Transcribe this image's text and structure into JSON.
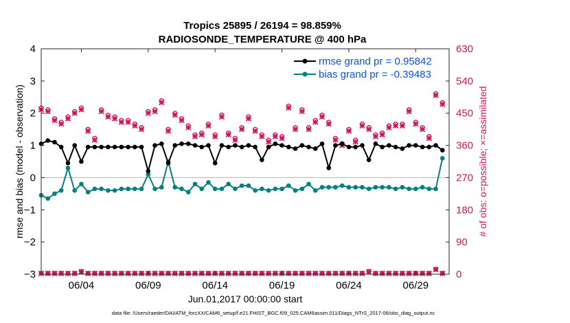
{
  "chart_data": {
    "type": "line",
    "title": "Tropics 25895 / 26194 = 98.859%",
    "subtitle": "RADIOSONDE_TEMPERATURE @ 400 hPa",
    "xlabel": "Jun.01,2017 00:00:00 start",
    "ylabel_left": "rmse and bias (model - observation)",
    "ylabel_right": "# of obs: o=possible; ×=assimilated",
    "footer": "data file: /Users/raeder/DAI/ATM_forcXX/CAM6_setup/f.e21.FHIST_BGC.f09_025.CAM6assim.011/Diags_NTrS_2017-06/obs_diag_output.nc",
    "xlim": [
      1,
      31.5
    ],
    "ylim_left": [
      -3,
      4
    ],
    "ylim_right": [
      0,
      630
    ],
    "x_ticks": [
      4,
      9,
      14,
      19,
      24,
      29
    ],
    "x_tick_labels": [
      "06/04",
      "06/09",
      "06/14",
      "06/19",
      "06/24",
      "06/29"
    ],
    "y_ticks_left": [
      -3,
      -2,
      -1,
      0,
      1,
      2,
      3,
      4
    ],
    "y_tick_labels_left": [
      "−3",
      "−2",
      "−1",
      "0",
      "1",
      "2",
      "3",
      "4"
    ],
    "y_ticks_right": [
      0,
      90,
      180,
      270,
      360,
      450,
      540,
      630
    ],
    "y_tick_labels_right": [
      "0",
      "90",
      "180",
      "270",
      "360",
      "450",
      "540",
      "630"
    ],
    "legend": [
      {
        "label": "rmse grand pr = 0.95842",
        "color": "#000000",
        "text_color": "#0a50e6"
      },
      {
        "label": "bias grand pr = -0.39483",
        "color": "#008080",
        "text_color": "#0a50e6"
      }
    ],
    "colors": {
      "rmse": "#000000",
      "bias": "#008080",
      "obs": "#d4145a",
      "zero_line": "#bbbbbb"
    },
    "x": [
      1.0,
      1.5,
      2.0,
      2.5,
      3.0,
      3.5,
      4.0,
      4.5,
      5.0,
      5.5,
      6.0,
      6.5,
      7.0,
      7.5,
      8.0,
      8.5,
      9.0,
      9.5,
      10.0,
      10.5,
      11.0,
      11.5,
      12.0,
      12.5,
      13.0,
      13.5,
      14.0,
      14.5,
      15.0,
      15.5,
      16.0,
      16.5,
      17.0,
      17.5,
      18.0,
      18.5,
      19.0,
      19.5,
      20.0,
      20.5,
      21.0,
      21.5,
      22.0,
      22.5,
      23.0,
      23.5,
      24.0,
      24.5,
      25.0,
      25.5,
      26.0,
      26.5,
      27.0,
      27.5,
      28.0,
      28.5,
      29.0,
      29.5,
      30.0,
      30.5,
      31.0
    ],
    "series": [
      {
        "name": "rmse",
        "values": [
          1.05,
          1.15,
          1.1,
          0.95,
          0.45,
          1.0,
          0.5,
          0.95,
          0.95,
          0.95,
          0.95,
          0.95,
          0.95,
          0.95,
          0.95,
          0.95,
          0.2,
          1.0,
          1.05,
          0.45,
          1.0,
          1.05,
          1.05,
          1.0,
          0.95,
          1.0,
          0.45,
          1.0,
          0.95,
          1.0,
          0.95,
          1.0,
          0.95,
          0.55,
          0.95,
          1.05,
          1.0,
          0.95,
          0.9,
          1.0,
          0.95,
          0.9,
          1.05,
          0.3,
          1.0,
          1.05,
          0.95,
          0.95,
          1.0,
          0.55,
          1.05,
          0.95,
          1.0,
          0.95,
          0.9,
          1.0,
          1.0,
          0.95,
          0.95,
          1.0,
          0.85
        ]
      },
      {
        "name": "bias",
        "values": [
          -0.55,
          -0.65,
          -0.5,
          -0.4,
          0.3,
          -0.4,
          -0.2,
          -0.45,
          -0.35,
          -0.35,
          -0.4,
          -0.4,
          -0.35,
          -0.35,
          -0.35,
          -0.35,
          0.1,
          -0.35,
          -0.3,
          0.5,
          -0.3,
          -0.35,
          -0.45,
          -0.2,
          -0.35,
          -0.15,
          -0.35,
          -0.35,
          -0.2,
          -0.35,
          -0.25,
          -0.25,
          -0.4,
          -0.35,
          -0.4,
          -0.35,
          -0.35,
          -0.25,
          -0.4,
          -0.35,
          -0.2,
          -0.4,
          -0.3,
          -0.3,
          -0.3,
          -0.25,
          -0.3,
          -0.3,
          -0.3,
          -0.35,
          -0.3,
          -0.3,
          -0.3,
          -0.35,
          -0.3,
          -0.35,
          -0.35,
          -0.3,
          -0.35,
          -0.35,
          0.6
        ]
      },
      {
        "name": "obs_possible",
        "values": [
          465,
          460,
          435,
          425,
          440,
          455,
          465,
          405,
          380,
          460,
          445,
          440,
          430,
          430,
          420,
          410,
          455,
          460,
          485,
          405,
          450,
          435,
          415,
          390,
          395,
          420,
          390,
          445,
          395,
          380,
          410,
          440,
          405,
          390,
          375,
          390,
          385,
          470,
          410,
          460,
          410,
          430,
          445,
          425,
          380,
          365,
          405,
          375,
          420,
          410,
          390,
          395,
          415,
          420,
          420,
          460,
          425,
          410,
          385,
          505,
          480
        ]
      },
      {
        "name": "obs_assimilated",
        "values": [
          460,
          455,
          430,
          420,
          435,
          450,
          460,
          400,
          375,
          455,
          440,
          435,
          425,
          425,
          415,
          405,
          450,
          455,
          480,
          400,
          445,
          430,
          410,
          385,
          390,
          415,
          385,
          440,
          390,
          375,
          405,
          435,
          400,
          385,
          370,
          385,
          380,
          465,
          405,
          455,
          405,
          425,
          440,
          420,
          375,
          360,
          400,
          370,
          415,
          405,
          385,
          390,
          410,
          415,
          415,
          455,
          420,
          405,
          380,
          500,
          475
        ]
      },
      {
        "name": "obs_low_possible",
        "values": [
          3,
          3,
          3,
          3,
          3,
          3,
          8,
          3,
          3,
          3,
          3,
          3,
          3,
          3,
          3,
          3,
          3,
          3,
          3,
          3,
          3,
          3,
          3,
          3,
          3,
          3,
          3,
          3,
          3,
          3,
          3,
          3,
          3,
          3,
          3,
          3,
          3,
          3,
          3,
          3,
          3,
          3,
          3,
          3,
          3,
          3,
          3,
          3,
          3,
          8,
          3,
          3,
          3,
          3,
          3,
          3,
          3,
          3,
          3,
          14,
          3
        ]
      },
      {
        "name": "obs_low_assimilated",
        "values": [
          2,
          2,
          2,
          2,
          2,
          2,
          7,
          2,
          2,
          2,
          2,
          2,
          2,
          2,
          2,
          2,
          2,
          2,
          2,
          2,
          2,
          2,
          2,
          2,
          2,
          2,
          2,
          2,
          2,
          2,
          2,
          2,
          2,
          2,
          2,
          2,
          2,
          2,
          2,
          2,
          2,
          2,
          2,
          2,
          2,
          2,
          2,
          2,
          2,
          7,
          2,
          2,
          2,
          2,
          2,
          2,
          2,
          2,
          2,
          13,
          2
        ]
      }
    ]
  }
}
